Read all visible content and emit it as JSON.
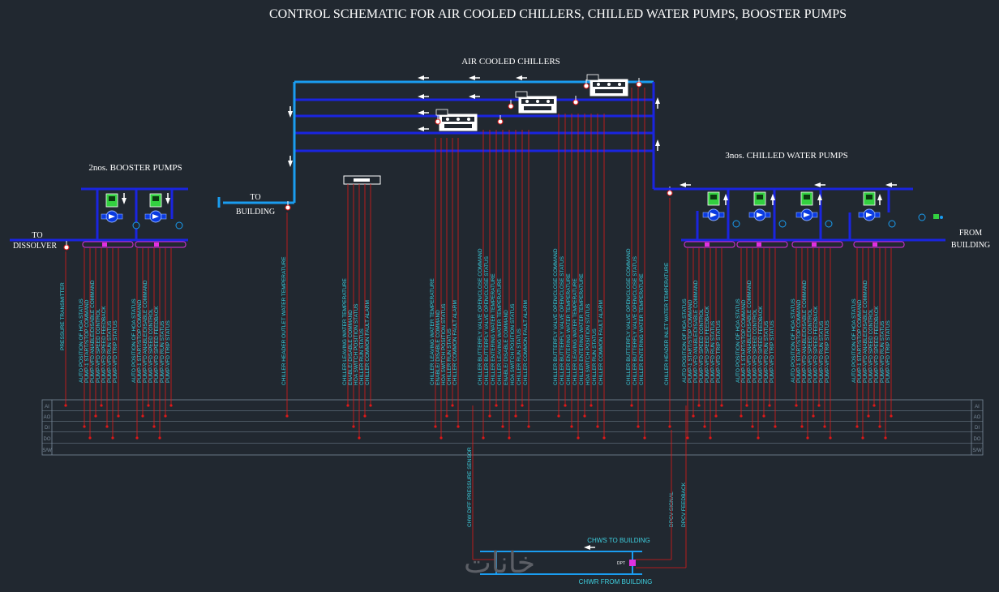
{
  "title": "CONTROL SCHEMATIC FOR AIR COOLED CHILLERS, CHILLED WATER PUMPS, BOOSTER PUMPS",
  "sections": {
    "chillers": "AIR COOLED CHILLERS",
    "booster": "2nos. BOOSTER PUMPS",
    "chwp": "3nos. CHILLED WATER PUMPS"
  },
  "labels": {
    "to_building_1": "TO",
    "to_building_2": "BUILDING",
    "to_dissolver_1": "TO",
    "to_dissolver_2": "DISSOLVER",
    "from_building_1": "FROM",
    "from_building_2": "BUILDING",
    "chws": "CHWS TO BUILDING",
    "chwr": "CHWR FROM BUILDING",
    "dpt": "DPT",
    "watermark": "خانات"
  },
  "bus_rows": [
    "AI",
    "AO",
    "DI",
    "DO",
    "S/W"
  ],
  "signals": {
    "pressure": [
      "PRESSURE TRANSMITTER"
    ],
    "booster_pump": [
      "AUTO POSITION OF HOA STATUS",
      "PUMP-1 START/STOP COMMAND",
      "PUMP-VFD ANABLE/DISABLE COMMAND",
      "PUMP-VFD SPEED CONTROL",
      "PUMP-VFD SPEED FEEDBACK",
      "PUMP-VFD RUN STATUS",
      "PUMP-VFD TRIP STATUS"
    ],
    "header_outlet": [
      "CHILLER HEADER OUTLET WATER TEMPERATURE"
    ],
    "chiller_panel": [
      "CHILLER LEAVING WATER TEMPERATURE",
      "ENABLE/ DISABLE COMMAND",
      "HOA SWITCH POSITION STATUS",
      "CHILLER RUN STATUS",
      "CHILLER COMMON FAULT ALARM"
    ],
    "chiller_a": [
      "CHILLER LEAVING WATER TEMPERATURE",
      "ENABLE/ DISABLE COMMAND",
      "HOA SWITCH POSITION STATUS",
      "CHILLER RUN STATUS",
      "CHILLER COMMON FAULT ALARM"
    ],
    "chiller_b": [
      "CHILLER BUTTERFLY VALVE OPEN/CLOSE COMMAND",
      "CHILLER BUTTERFLY VALVE OPEN/CLOSE STATUS",
      "CHILLER ENTERING WATER TEMPERATURE",
      "CHILLER LEAVING WATER TEMPERATURE",
      "ENABLE/ DISABLE COMMAND",
      "HOA SWITCH POSITION STATUS",
      "CHILLER RUN STATUS",
      "CHILLER COMMON FAULT ALARM"
    ],
    "chiller_c": [
      "CHILLER BUTTERFLY VALVE OPEN/CLOSE COMMAND",
      "CHILLER BUTTERFLY VALVE OPEN/CLOSE STATUS",
      "CHILLER ENTERING WATER TEMPERATURE",
      "CHILLER LEAVING WATER TEMPERATURE",
      "CHILLER ENTERING WATER TEMPERATURE",
      "HOA SWITCH POSITION STATUS",
      "CHILLER RUN STATUS",
      "CHILLER COMMON FAULT ALARM"
    ],
    "chiller_d": [
      "CHILLER BUTTERFLY VALVE OPEN/CLOSE COMMAND",
      "CHILLER BUTTERFLY VALVE OPEN/CLOSE STATUS",
      "CHILLER ENTERING WATER TEMPERATURE"
    ],
    "header_inlet": [
      "CHILLER HEADER INLET WATER TEMPERATURE"
    ],
    "chwp_pump": [
      "AUTO POSITION OF HOA STATUS",
      "PUMP-1 START/STOP COMMAND",
      "PUMP-VFD ANABLE/DISABLE COMMAND",
      "PUMP-VFD SPEED CONTROL",
      "PUMP-VFD SPEED FEEDBACK",
      "PUMP-VFD RUN STATUS",
      "PUMP-VFD TRIP STATUS"
    ],
    "dp": [
      "CHW DIFF PRESSURE SENSOR"
    ],
    "dpcv": [
      "DPCV SIGNAL",
      "DPCV FEEDBACK"
    ]
  },
  "colors": {
    "background": "#212830",
    "pipe": "#1a25e0",
    "chw_pipe": "#1a9df0",
    "signal": "#e01818",
    "text": "#ffffff",
    "label": "#3ed0e0",
    "bus": "#7a8a9a",
    "pump": "#0a3ae0",
    "motor": "#33d040",
    "node": "#e030e0"
  }
}
